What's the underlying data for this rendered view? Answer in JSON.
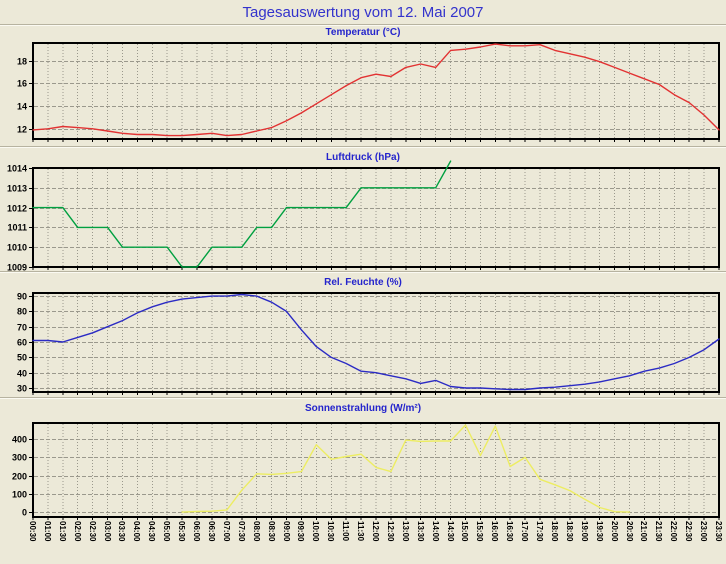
{
  "window": {
    "title": "Tagesauswertung vom 12. Mai 2007"
  },
  "colors": {
    "background": "#ECE9D8",
    "plot_background": "#ECE9D8",
    "title_text": "#3333CC",
    "subtitle_text": "#2424CC",
    "frame": "#000000",
    "grid": "#9a988c",
    "tick": "#000000",
    "temperature_line": "#E23232",
    "pressure_line": "#00A040",
    "humidity_line": "#2B2BC4",
    "radiation_line": "#EDED62"
  },
  "x_labels": [
    "00:30",
    "01:00",
    "01:30",
    "02:00",
    "02:30",
    "03:00",
    "03:30",
    "04:00",
    "04:30",
    "05:00",
    "05:30",
    "06:00",
    "06:30",
    "07:00",
    "07:30",
    "08:00",
    "08:30",
    "09:00",
    "09:30",
    "10:00",
    "10:30",
    "11:00",
    "11:30",
    "12:00",
    "12:30",
    "13:00",
    "13:30",
    "14:00",
    "14:30",
    "15:00",
    "15:30",
    "16:00",
    "16:30",
    "17:00",
    "17:30",
    "18:00",
    "18:30",
    "19:00",
    "19:30",
    "20:00",
    "20:30",
    "21:00",
    "21:30",
    "22:00",
    "22:30",
    "23:00",
    "23:30"
  ],
  "chart_data": [
    {
      "type": "line",
      "title": "Temperatur (°C)",
      "color_key": "temperature_line",
      "ylim": [
        11.1,
        19.55
      ],
      "yticks": [
        12,
        14,
        16,
        18
      ],
      "grid": true,
      "legend": "none",
      "values": [
        11.9,
        12.0,
        12.2,
        12.1,
        12.0,
        11.8,
        11.6,
        11.5,
        11.5,
        11.4,
        11.4,
        11.5,
        11.6,
        11.4,
        11.5,
        11.8,
        12.1,
        12.7,
        13.4,
        14.2,
        15.0,
        15.8,
        16.5,
        16.8,
        16.6,
        17.4,
        17.7,
        17.4,
        18.9,
        19.0,
        19.2,
        19.45,
        19.3,
        19.3,
        19.4,
        18.9,
        18.6,
        18.3,
        17.9,
        17.4,
        16.9,
        16.4,
        15.9,
        15.0,
        14.3,
        13.2,
        11.9
      ]
    },
    {
      "type": "line",
      "title": "Luftdruck (hPa)",
      "color_key": "pressure_line",
      "ylim": [
        1009,
        1014
      ],
      "yticks": [
        1009,
        1010,
        1011,
        1012,
        1013,
        1014
      ],
      "grid": true,
      "legend": "none",
      "values": [
        1012,
        1012,
        1012,
        1011,
        1011,
        1011,
        1010,
        1010,
        1010,
        1010,
        1009,
        1009,
        1010,
        1010,
        1010,
        1011,
        1011,
        1012,
        1012,
        1012,
        1012,
        1012,
        1013,
        1013,
        1013,
        1013,
        1013,
        1013,
        1014.35,
        null,
        null,
        null,
        null,
        null,
        null,
        null,
        null,
        null,
        null,
        null,
        null,
        null,
        null,
        null,
        null,
        null,
        null
      ]
    },
    {
      "type": "line",
      "title": "Rel. Feuchte (%)",
      "color_key": "humidity_line",
      "ylim": [
        27.4,
        92
      ],
      "yticks": [
        30,
        40,
        50,
        60,
        70,
        80,
        90
      ],
      "grid": true,
      "legend": "none",
      "values": [
        61,
        61,
        60,
        63,
        66,
        70,
        74,
        79,
        83,
        86,
        88,
        89,
        90,
        90,
        91,
        90,
        86,
        80,
        68,
        57,
        50,
        46,
        41,
        40,
        38,
        36,
        33,
        35,
        31,
        30,
        30,
        29.5,
        29,
        29,
        30,
        30.5,
        31.5,
        32.5,
        34,
        36,
        38,
        41,
        43,
        46,
        50,
        55,
        62
      ]
    },
    {
      "type": "line",
      "title": "Sonnenstrahlung (W/m²)",
      "color_key": "radiation_line",
      "ylim": [
        -27,
        489
      ],
      "yticks": [
        0,
        100,
        200,
        300,
        400
      ],
      "grid": true,
      "legend": "none",
      "values": [
        null,
        null,
        null,
        null,
        null,
        null,
        null,
        null,
        null,
        null,
        0,
        3,
        5,
        12,
        120,
        210,
        207,
        213,
        222,
        370,
        290,
        305,
        318,
        245,
        222,
        395,
        388,
        390,
        390,
        478,
        310,
        472,
        250,
        300,
        180,
        150,
        118,
        70,
        25,
        2,
        0,
        null,
        null,
        null,
        null,
        null,
        null
      ]
    }
  ]
}
